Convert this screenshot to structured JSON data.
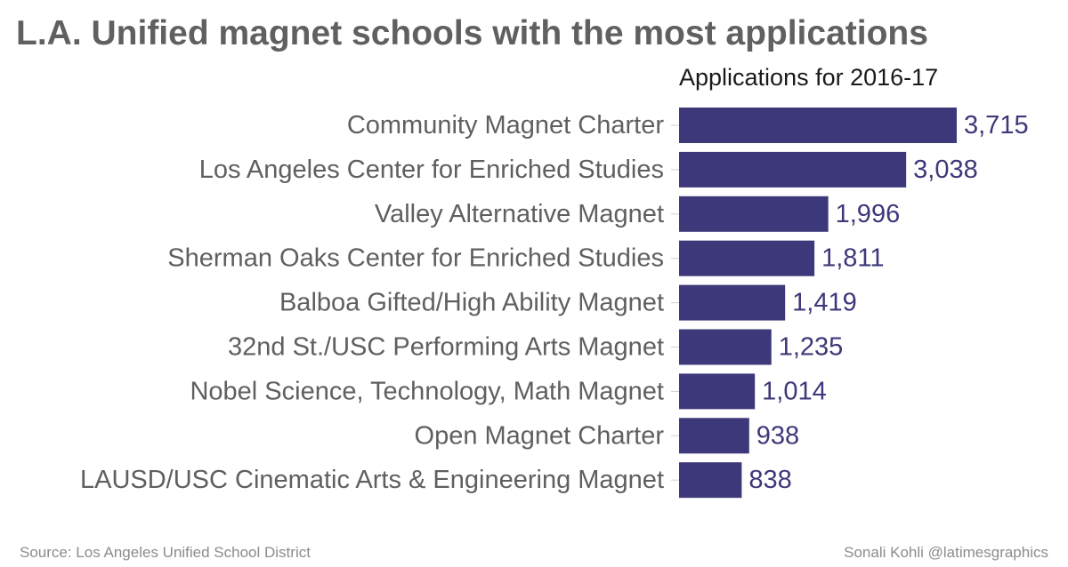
{
  "chart_data": {
    "type": "bar",
    "orientation": "horizontal",
    "title": "L.A. Unified magnet schools with the most applications",
    "subtitle": "Applications for 2016-17",
    "categories": [
      "Community Magnet Charter",
      "Los Angeles Center for Enriched Studies",
      "Valley Alternative Magnet",
      "Sherman Oaks Center for Enriched Studies",
      "Balboa Gifted/High Ability Magnet",
      "32nd St./USC Performing Arts Magnet",
      "Nobel Science, Technology, Math Magnet",
      "Open Magnet Charter",
      "LAUSD/USC Cinematic Arts & Engineering Magnet"
    ],
    "values": [
      3715,
      3038,
      1996,
      1811,
      1419,
      1235,
      1014,
      938,
      838
    ],
    "value_labels": [
      "3,715",
      "3,038",
      "1,996",
      "1,811",
      "1,419",
      "1,235",
      "1,014",
      "938",
      "838"
    ],
    "xlim": [
      0,
      3715
    ],
    "grid": false,
    "bar_color": "#3d3879",
    "value_label_color": "#3d3879",
    "category_label_color": "#5f5f5f"
  },
  "footer": {
    "source": "Source: Los Angeles Unified School District",
    "credit": "Sonali Kohli @latimesgraphics"
  }
}
